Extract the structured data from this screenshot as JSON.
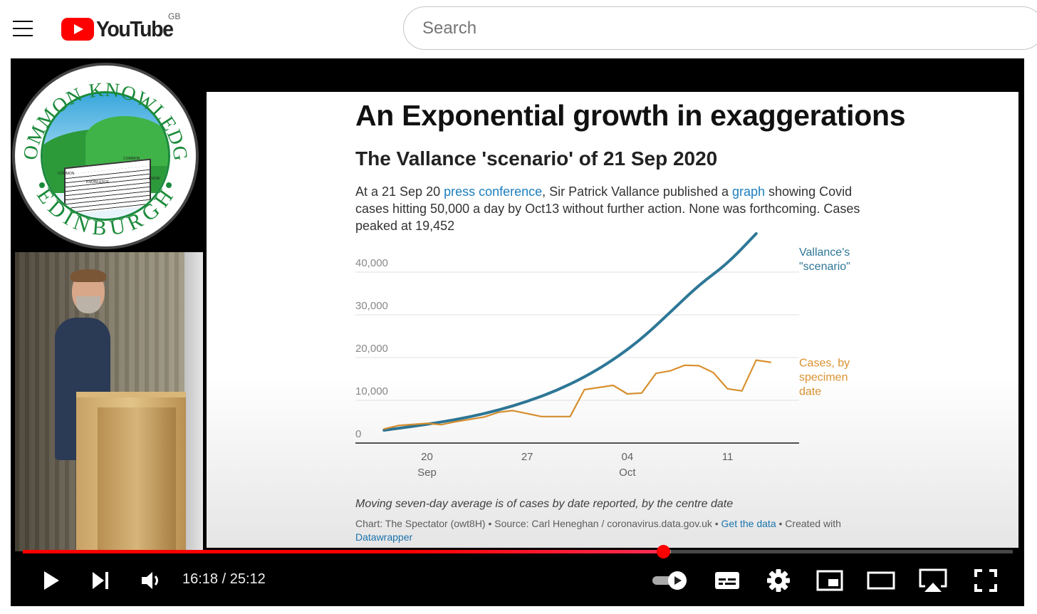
{
  "header": {
    "logo_text": "YouTube",
    "country_code": "GB",
    "search_placeholder": "Search"
  },
  "channel_badge": {
    "top_text": "COMMON KNOWLEDGE",
    "bottom_text": "EDINBURGH",
    "book_words": [
      "COMMON",
      "KNOWLEDGE",
      "COMMON",
      "KNOW"
    ]
  },
  "slide": {
    "title": "An Exponential growth in exaggerations",
    "subtitle": "The Vallance 'scenario' of 21 Sep 2020",
    "description_part1": "At a 21 Sep 20 ",
    "description_link1": "press conference",
    "description_part2": ", Sir Patrick Vallance published a ",
    "description_link2": "graph",
    "description_part3": " showing Covid cases hitting 50,000 a day by Oct13 without further action. None was forthcoming. Cases peaked at 19,452",
    "note": "Moving seven-day average is of cases by date reported, by the centre date",
    "credit_part1": "Chart: The Spectator (owt8H) • Source: Carl Heneghan / coronavirus.data.gov.uk • ",
    "credit_link1": "Get the data",
    "credit_part2": " • Created with ",
    "credit_link2": "Datawrapper"
  },
  "chart_data": {
    "type": "line",
    "title": "",
    "xlabel": "",
    "ylabel": "",
    "ylim": [
      0,
      45000
    ],
    "xlim": [
      "2020-09-15",
      "2020-10-16"
    ],
    "y_ticks": [
      {
        "value": 0,
        "label": "0"
      },
      {
        "value": 10000,
        "label": "10,000"
      },
      {
        "value": 20000,
        "label": "20,000"
      },
      {
        "value": 30000,
        "label": "30,000"
      },
      {
        "value": 40000,
        "label": "40,000"
      }
    ],
    "x_ticks": [
      {
        "date": "2020-09-20",
        "label": "20",
        "sublabel": "Sep"
      },
      {
        "date": "2020-09-27",
        "label": "27",
        "sublabel": ""
      },
      {
        "date": "2020-10-04",
        "label": "04",
        "sublabel": "Oct"
      },
      {
        "date": "2020-10-11",
        "label": "11",
        "sublabel": ""
      }
    ],
    "grid": true,
    "series": [
      {
        "name": "Vallance's \"scenario\"",
        "label_lines": [
          "Vallance's",
          "\"scenario\""
        ],
        "color": "#2e7797",
        "points": [
          [
            "2020-09-17",
            3000
          ],
          [
            "2020-09-19",
            3900
          ],
          [
            "2020-09-21",
            4900
          ],
          [
            "2020-09-23",
            6100
          ],
          [
            "2020-09-25",
            7700
          ],
          [
            "2020-09-27",
            9700
          ],
          [
            "2020-09-29",
            12200
          ],
          [
            "2020-10-01",
            15400
          ],
          [
            "2020-10-03",
            19400
          ],
          [
            "2020-10-05",
            24400
          ],
          [
            "2020-10-07",
            30600
          ],
          [
            "2020-10-09",
            37000
          ],
          [
            "2020-10-11",
            42000
          ],
          [
            "2020-10-13",
            49000
          ]
        ]
      },
      {
        "name": "Cases, by specimen date",
        "label_lines": [
          "Cases, by",
          "specimen",
          "date"
        ],
        "color": "#d9912e",
        "points": [
          [
            "2020-09-17",
            3300
          ],
          [
            "2020-09-18",
            4100
          ],
          [
            "2020-09-20",
            4600
          ],
          [
            "2020-09-21",
            4300
          ],
          [
            "2020-09-22",
            5000
          ],
          [
            "2020-09-24",
            6100
          ],
          [
            "2020-09-25",
            7200
          ],
          [
            "2020-09-26",
            7600
          ],
          [
            "2020-09-28",
            6200
          ],
          [
            "2020-09-30",
            6200
          ],
          [
            "2020-10-01",
            12500
          ],
          [
            "2020-10-03",
            13500
          ],
          [
            "2020-10-04",
            11500
          ],
          [
            "2020-10-05",
            11700
          ],
          [
            "2020-10-06",
            16300
          ],
          [
            "2020-10-07",
            16900
          ],
          [
            "2020-10-08",
            18200
          ],
          [
            "2020-10-09",
            18100
          ],
          [
            "2020-10-10",
            16500
          ],
          [
            "2020-10-11",
            12700
          ],
          [
            "2020-10-12",
            12200
          ],
          [
            "2020-10-13",
            19400
          ],
          [
            "2020-10-14",
            18900
          ]
        ]
      }
    ]
  },
  "player": {
    "current_time": "16:18",
    "duration": "25:12",
    "played_fraction": 0.647,
    "buffered_fraction": 0.655,
    "autoplay_on": true
  }
}
